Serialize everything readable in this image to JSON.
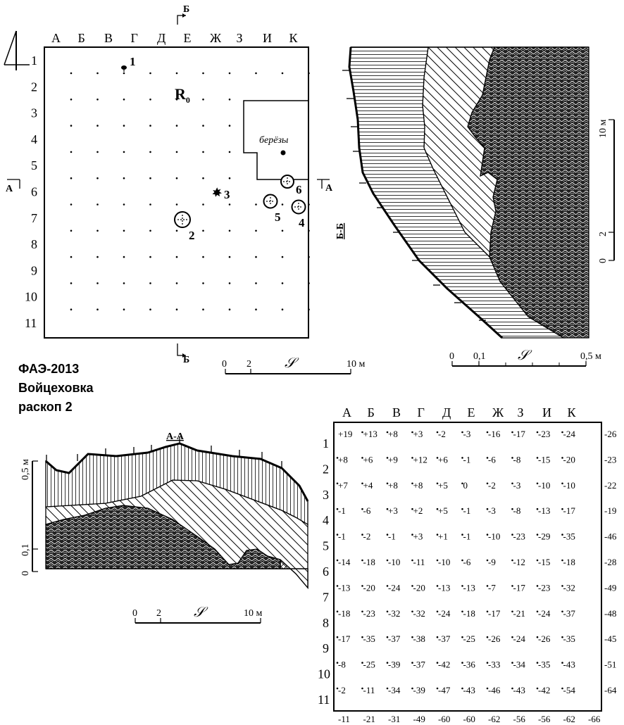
{
  "title": {
    "line1": "ФАЭ-2013",
    "line2": "Войцеховка",
    "line3": "раскоп 2"
  },
  "plan": {
    "columns": [
      "А",
      "Б",
      "В",
      "Г",
      "Д",
      "Е",
      "Ж",
      "З",
      "И",
      "К"
    ],
    "rows": [
      "1",
      "2",
      "3",
      "4",
      "5",
      "6",
      "7",
      "8",
      "9",
      "10",
      "11"
    ],
    "reference_point": "R",
    "reference_sub": "0",
    "birch_label": "берёзы",
    "features": [
      {
        "label": "1",
        "kind": "dot"
      },
      {
        "label": "2",
        "kind": "pit"
      },
      {
        "label": "3",
        "kind": "star"
      },
      {
        "label": "4",
        "kind": "pit"
      },
      {
        "label": "5",
        "kind": "pit"
      },
      {
        "label": "6",
        "kind": "pit"
      }
    ],
    "section_marks": {
      "bb_top": "Б",
      "bb_bottom": "Б",
      "aa_left": "А",
      "aa_right": "А"
    },
    "scale": {
      "ticks": [
        "0",
        "2",
        "10 м"
      ],
      "symbol": "𝒮"
    }
  },
  "section_bb": {
    "label": "Б-Б",
    "vertical_scale": [
      "0",
      "2",
      "10 м"
    ],
    "depth_scale": [
      "0",
      "0,1",
      "0,5 м"
    ],
    "symbol": "𝒮"
  },
  "section_aa": {
    "label": "А-А",
    "vertical_scale": [
      "0",
      "0,1",
      "0,5 м"
    ],
    "horizontal_scale": [
      "0",
      "2",
      "10 м"
    ],
    "symbol": "𝒮"
  },
  "elevation_table": {
    "columns": [
      "А",
      "Б",
      "В",
      "Г",
      "Д",
      "Е",
      "Ж",
      "З",
      "И",
      "К"
    ],
    "rows": [
      "1",
      "2",
      "3",
      "4",
      "5",
      "6",
      "7",
      "8",
      "9",
      "10",
      "11"
    ],
    "values": [
      [
        "+19",
        "+13",
        "+8",
        "+3",
        "-2",
        "-3",
        "-16",
        "-17",
        "-23",
        "-24"
      ],
      [
        "+8",
        "+6",
        "+9",
        "+12",
        "+6",
        "-1",
        "-6",
        "-8",
        "-15",
        "-20"
      ],
      [
        "+7",
        "+4",
        "+8",
        "+8",
        "+5",
        "0",
        "-2",
        "-3",
        "-10",
        "-10"
      ],
      [
        "-1",
        "-6",
        "+3",
        "+2",
        "+5",
        "-1",
        "-3",
        "-8",
        "-13",
        "-17"
      ],
      [
        "-1",
        "-2",
        "-1",
        "+3",
        "+1",
        "-1",
        "-10",
        "-23",
        "-29",
        "-35"
      ],
      [
        "-14",
        "-18",
        "-10",
        "-11",
        "-10",
        "-6",
        "-9",
        "-12",
        "-15",
        "-18"
      ],
      [
        "-13",
        "-20",
        "-24",
        "-20",
        "-13",
        "-13",
        "-7",
        "-17",
        "-23",
        "-32"
      ],
      [
        "-18",
        "-23",
        "-32",
        "-32",
        "-24",
        "-18",
        "-17",
        "-21",
        "-24",
        "-37"
      ],
      [
        "-17",
        "-35",
        "-37",
        "-38",
        "-37",
        "-25",
        "-26",
        "-24",
        "-26",
        "-35"
      ],
      [
        "-8",
        "-25",
        "-39",
        "-37",
        "-42",
        "-36",
        "-33",
        "-34",
        "-35",
        "-43"
      ],
      [
        "-2",
        "-11",
        "-34",
        "-39",
        "-47",
        "-43",
        "-46",
        "-43",
        "-42",
        "-54"
      ]
    ],
    "right_values": [
      "-26",
      "-23",
      "-22",
      "-19",
      "-46",
      "-28",
      "-49",
      "-48",
      "-45",
      "-51",
      "-64"
    ],
    "bottom_values": [
      "-11",
      "-21",
      "-31",
      "-49",
      "-60",
      "-60",
      "-62",
      "-56",
      "-56",
      "-62",
      "-66"
    ]
  }
}
